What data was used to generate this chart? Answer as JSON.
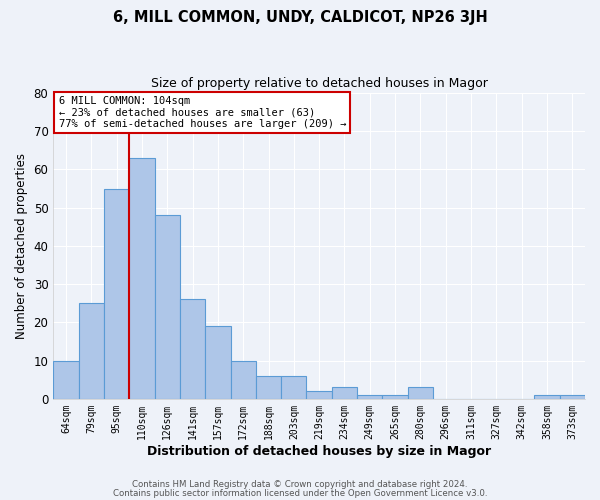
{
  "title": "6, MILL COMMON, UNDY, CALDICOT, NP26 3JH",
  "subtitle": "Size of property relative to detached houses in Magor",
  "xlabel": "Distribution of detached houses by size in Magor",
  "ylabel": "Number of detached properties",
  "bar_labels": [
    "64sqm",
    "79sqm",
    "95sqm",
    "110sqm",
    "126sqm",
    "141sqm",
    "157sqm",
    "172sqm",
    "188sqm",
    "203sqm",
    "219sqm",
    "234sqm",
    "249sqm",
    "265sqm",
    "280sqm",
    "296sqm",
    "311sqm",
    "327sqm",
    "342sqm",
    "358sqm",
    "373sqm"
  ],
  "bar_values": [
    10,
    25,
    55,
    63,
    48,
    26,
    19,
    10,
    6,
    6,
    2,
    3,
    1,
    1,
    3,
    0,
    0,
    0,
    0,
    1,
    1
  ],
  "bar_color": "#aec6e8",
  "bar_edgecolor": "#5b9bd5",
  "bar_linewidth": 0.8,
  "ylim": [
    0,
    80
  ],
  "yticks": [
    0,
    10,
    20,
    30,
    40,
    50,
    60,
    70,
    80
  ],
  "vline_index": 3,
  "vline_color": "#cc0000",
  "annotation_title": "6 MILL COMMON: 104sqm",
  "annotation_line1": "← 23% of detached houses are smaller (63)",
  "annotation_line2": "77% of semi-detached houses are larger (209) →",
  "annotation_box_edgecolor": "#cc0000",
  "background_color": "#eef2f9",
  "grid_color": "#ffffff",
  "footer_line1": "Contains HM Land Registry data © Crown copyright and database right 2024.",
  "footer_line2": "Contains public sector information licensed under the Open Government Licence v3.0."
}
